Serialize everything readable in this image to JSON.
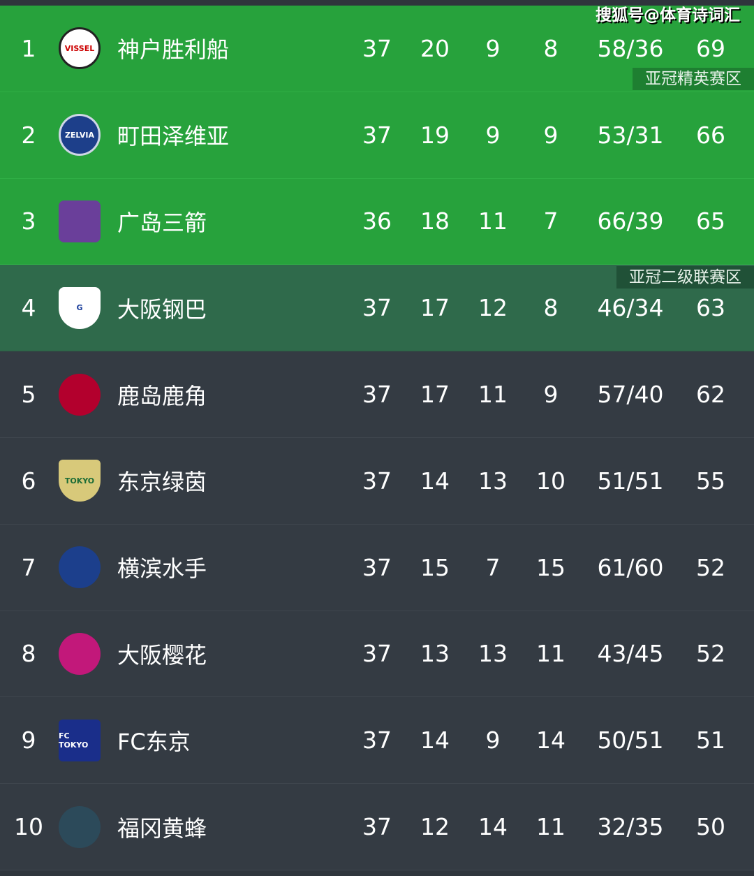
{
  "credit": "搜狐号@体育诗词汇",
  "zones": {
    "top": "亚冠精英赛区",
    "second": "亚冠二级联赛区"
  },
  "colors": {
    "acl_elite": "#27a23c",
    "acl_two": "#2f6a4b",
    "default": "#343b43"
  },
  "rows": [
    {
      "rank": "1",
      "name": "神户胜利船",
      "logo": "VISSEL",
      "played": "37",
      "w": "20",
      "d": "9",
      "l": "8",
      "goals": "58/36",
      "pts": "69"
    },
    {
      "rank": "2",
      "name": "町田泽维亚",
      "logo": "ZELVIA",
      "played": "37",
      "w": "19",
      "d": "9",
      "l": "9",
      "goals": "53/31",
      "pts": "66"
    },
    {
      "rank": "3",
      "name": "广岛三箭",
      "logo": "",
      "played": "36",
      "w": "18",
      "d": "11",
      "l": "7",
      "goals": "66/39",
      "pts": "65"
    },
    {
      "rank": "4",
      "name": "大阪钢巴",
      "logo": "G",
      "played": "37",
      "w": "17",
      "d": "12",
      "l": "8",
      "goals": "46/34",
      "pts": "63"
    },
    {
      "rank": "5",
      "name": "鹿岛鹿角",
      "logo": "",
      "played": "37",
      "w": "17",
      "d": "11",
      "l": "9",
      "goals": "57/40",
      "pts": "62"
    },
    {
      "rank": "6",
      "name": "东京绿茵",
      "logo": "TOKYO",
      "played": "37",
      "w": "14",
      "d": "13",
      "l": "10",
      "goals": "51/51",
      "pts": "55"
    },
    {
      "rank": "7",
      "name": "横滨水手",
      "logo": "",
      "played": "37",
      "w": "15",
      "d": "7",
      "l": "15",
      "goals": "61/60",
      "pts": "52"
    },
    {
      "rank": "8",
      "name": "大阪樱花",
      "logo": "",
      "played": "37",
      "w": "13",
      "d": "13",
      "l": "11",
      "goals": "43/45",
      "pts": "52"
    },
    {
      "rank": "9",
      "name": "FC东京",
      "logo": "FC TOKYO",
      "played": "37",
      "w": "14",
      "d": "9",
      "l": "14",
      "goals": "50/51",
      "pts": "51"
    },
    {
      "rank": "10",
      "name": "福冈黄蜂",
      "logo": "",
      "played": "37",
      "w": "12",
      "d": "14",
      "l": "11",
      "goals": "32/35",
      "pts": "50"
    }
  ]
}
